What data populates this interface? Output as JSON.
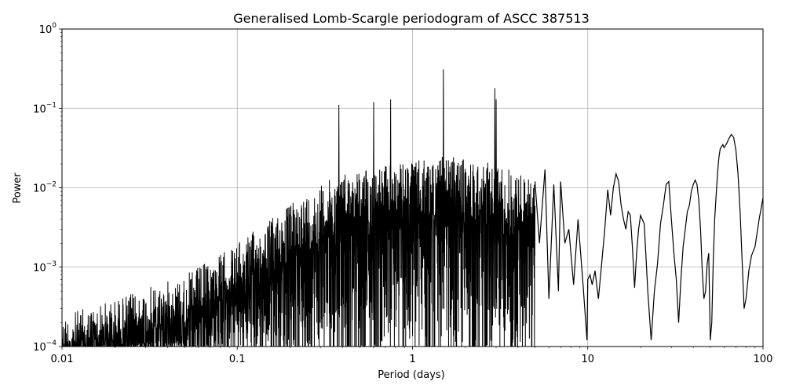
{
  "chart_data": {
    "type": "line",
    "title": "Generalised Lomb-Scargle periodogram of ASCC 387513",
    "xlabel": "Period (days)",
    "ylabel": "Power",
    "xscale": "log",
    "yscale": "log",
    "xlim": [
      0.01,
      100
    ],
    "ylim": [
      0.0001,
      1
    ],
    "grid": true,
    "line_color": "#000000",
    "x_ticks": [
      {
        "value": 0.01,
        "label": "0.01"
      },
      {
        "value": 0.1,
        "label": "0.1"
      },
      {
        "value": 1,
        "label": "1"
      },
      {
        "value": 10,
        "label": "10"
      },
      {
        "value": 100,
        "label": "100"
      }
    ],
    "y_ticks": [
      {
        "value": 0.0001,
        "base": "10",
        "exp": "−4"
      },
      {
        "value": 0.001,
        "base": "10",
        "exp": "−3"
      },
      {
        "value": 0.01,
        "base": "10",
        "exp": "−2"
      },
      {
        "value": 0.1,
        "base": "10",
        "exp": "−1"
      },
      {
        "value": 1,
        "base": "10",
        "exp": "0"
      }
    ],
    "peaks": [
      {
        "x": 0.38,
        "y": 0.11
      },
      {
        "x": 0.6,
        "y": 0.12
      },
      {
        "x": 0.75,
        "y": 0.13
      },
      {
        "x": 1.5,
        "y": 0.31
      },
      {
        "x": 2.95,
        "y": 0.18
      },
      {
        "x": 3.0,
        "y": 0.13
      }
    ],
    "smooth_series": {
      "x": [
        5.0,
        5.3,
        5.7,
        6.0,
        6.4,
        6.8,
        7.0,
        7.4,
        7.8,
        8.3,
        8.8,
        9.4,
        9.9,
        10.0,
        10.3,
        10.6,
        11.0,
        11.5,
        12.0,
        12.5,
        13.0,
        13.5,
        14.0,
        14.5,
        15.0,
        15.5,
        16.0,
        16.5,
        17.0,
        17.5,
        18.0,
        18.5,
        19.0,
        19.5,
        20.0,
        21.0,
        22.0,
        23.0,
        24.0,
        25.0,
        26.0,
        27.0,
        28.0,
        29.0,
        30.0,
        31.0,
        32.0,
        33.0,
        34.0,
        35.0,
        36.0,
        37.0,
        38.0,
        39.0,
        40.0,
        41.0,
        42.0,
        43.0,
        44.0,
        45.0,
        46.0,
        47.0,
        48.0,
        49.0,
        50.0,
        51.0,
        52.0,
        53.0,
        54.0,
        55.0,
        56.0,
        57.0,
        58.0,
        59.0,
        60.0,
        62.0,
        64.0,
        66.0,
        68.0,
        70.0,
        72.0,
        74.0,
        76.0,
        78.0,
        80.0,
        83.0,
        86.0,
        90.0,
        95.0,
        100.0
      ],
      "y": [
        0.012,
        0.002,
        0.017,
        0.0004,
        0.011,
        0.0005,
        0.012,
        0.002,
        0.003,
        0.0006,
        0.004,
        0.0006,
        0.00012,
        0.0007,
        0.0008,
        0.0006,
        0.0009,
        0.0004,
        0.0011,
        0.003,
        0.0095,
        0.0045,
        0.01,
        0.015,
        0.012,
        0.006,
        0.004,
        0.003,
        0.005,
        0.0045,
        0.0017,
        0.00055,
        0.0015,
        0.003,
        0.0045,
        0.0035,
        0.0005,
        0.00012,
        0.0005,
        0.0011,
        0.0035,
        0.006,
        0.011,
        0.012,
        0.004,
        0.0015,
        0.0007,
        0.0002,
        0.0007,
        0.0018,
        0.003,
        0.005,
        0.006,
        0.009,
        0.011,
        0.0125,
        0.011,
        0.007,
        0.003,
        0.0009,
        0.0004,
        0.0005,
        0.0011,
        0.0015,
        0.00012,
        0.0002,
        0.0012,
        0.004,
        0.008,
        0.015,
        0.024,
        0.031,
        0.033,
        0.035,
        0.032,
        0.036,
        0.042,
        0.047,
        0.043,
        0.03,
        0.015,
        0.005,
        0.0012,
        0.0003,
        0.0004,
        0.0009,
        0.0014,
        0.0018,
        0.004,
        0.0075
      ]
    }
  }
}
